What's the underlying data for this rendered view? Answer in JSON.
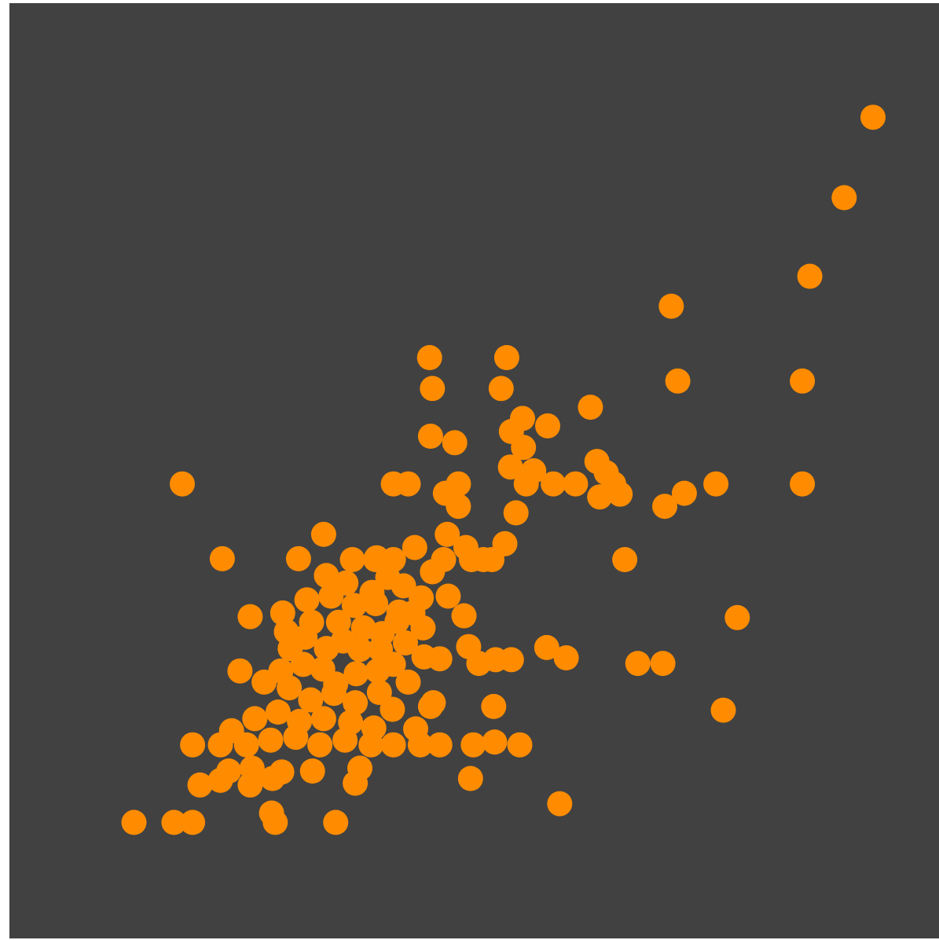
{
  "chart_data": {
    "type": "scatter",
    "title": "",
    "xlabel": "",
    "ylabel": "",
    "xlim": [
      0,
      1
    ],
    "ylim": [
      0,
      1
    ],
    "grid": false,
    "legend": "none",
    "background_color": "#414141",
    "marker_color": "#ff8c00",
    "points": [
      [
        0.134,
        0.124
      ],
      [
        0.177,
        0.124
      ],
      [
        0.197,
        0.124
      ],
      [
        0.286,
        0.124
      ],
      [
        0.351,
        0.124
      ],
      [
        0.592,
        0.144
      ],
      [
        0.282,
        0.134
      ],
      [
        0.205,
        0.164
      ],
      [
        0.227,
        0.169
      ],
      [
        0.259,
        0.164
      ],
      [
        0.283,
        0.171
      ],
      [
        0.236,
        0.179
      ],
      [
        0.261,
        0.182
      ],
      [
        0.293,
        0.178
      ],
      [
        0.326,
        0.179
      ],
      [
        0.372,
        0.166
      ],
      [
        0.377,
        0.182
      ],
      [
        0.496,
        0.171
      ],
      [
        0.197,
        0.207
      ],
      [
        0.227,
        0.207
      ],
      [
        0.255,
        0.207
      ],
      [
        0.281,
        0.212
      ],
      [
        0.308,
        0.215
      ],
      [
        0.334,
        0.207
      ],
      [
        0.361,
        0.212
      ],
      [
        0.389,
        0.207
      ],
      [
        0.413,
        0.207
      ],
      [
        0.442,
        0.207
      ],
      [
        0.463,
        0.207
      ],
      [
        0.437,
        0.224
      ],
      [
        0.499,
        0.207
      ],
      [
        0.522,
        0.21
      ],
      [
        0.549,
        0.207
      ],
      [
        0.239,
        0.222
      ],
      [
        0.264,
        0.235
      ],
      [
        0.289,
        0.242
      ],
      [
        0.312,
        0.232
      ],
      [
        0.338,
        0.235
      ],
      [
        0.367,
        0.231
      ],
      [
        0.392,
        0.225
      ],
      [
        0.301,
        0.268
      ],
      [
        0.324,
        0.255
      ],
      [
        0.349,
        0.262
      ],
      [
        0.372,
        0.252
      ],
      [
        0.398,
        0.263
      ],
      [
        0.412,
        0.245
      ],
      [
        0.453,
        0.248
      ],
      [
        0.521,
        0.248
      ],
      [
        0.768,
        0.244
      ],
      [
        0.248,
        0.286
      ],
      [
        0.274,
        0.274
      ],
      [
        0.292,
        0.286
      ],
      [
        0.316,
        0.293
      ],
      [
        0.337,
        0.288
      ],
      [
        0.351,
        0.272
      ],
      [
        0.373,
        0.283
      ],
      [
        0.396,
        0.286
      ],
      [
        0.413,
        0.293
      ],
      [
        0.429,
        0.274
      ],
      [
        0.456,
        0.252
      ],
      [
        0.302,
        0.31
      ],
      [
        0.318,
        0.322
      ],
      [
        0.341,
        0.31
      ],
      [
        0.359,
        0.318
      ],
      [
        0.377,
        0.309
      ],
      [
        0.399,
        0.309
      ],
      [
        0.426,
        0.316
      ],
      [
        0.446,
        0.301
      ],
      [
        0.463,
        0.299
      ],
      [
        0.523,
        0.298
      ],
      [
        0.54,
        0.298
      ],
      [
        0.578,
        0.311
      ],
      [
        0.599,
        0.3
      ],
      [
        0.676,
        0.294
      ],
      [
        0.703,
        0.294
      ],
      [
        0.325,
        0.338
      ],
      [
        0.354,
        0.338
      ],
      [
        0.381,
        0.332
      ],
      [
        0.401,
        0.326
      ],
      [
        0.417,
        0.339
      ],
      [
        0.445,
        0.332
      ],
      [
        0.494,
        0.312
      ],
      [
        0.505,
        0.294
      ],
      [
        0.259,
        0.344
      ],
      [
        0.294,
        0.348
      ],
      [
        0.32,
        0.362
      ],
      [
        0.346,
        0.366
      ],
      [
        0.371,
        0.356
      ],
      [
        0.394,
        0.358
      ],
      [
        0.419,
        0.349
      ],
      [
        0.434,
        0.348
      ],
      [
        0.472,
        0.366
      ],
      [
        0.489,
        0.345
      ],
      [
        0.298,
        0.328
      ],
      [
        0.783,
        0.343
      ],
      [
        0.341,
        0.388
      ],
      [
        0.362,
        0.38
      ],
      [
        0.39,
        0.37
      ],
      [
        0.407,
        0.386
      ],
      [
        0.424,
        0.377
      ],
      [
        0.443,
        0.364
      ],
      [
        0.455,
        0.392
      ],
      [
        0.467,
        0.405
      ],
      [
        0.497,
        0.405
      ],
      [
        0.519,
        0.405
      ],
      [
        0.662,
        0.405
      ],
      [
        0.229,
        0.406
      ],
      [
        0.311,
        0.406
      ],
      [
        0.369,
        0.405
      ],
      [
        0.394,
        0.405
      ],
      [
        0.413,
        0.405
      ],
      [
        0.436,
        0.418
      ],
      [
        0.491,
        0.418
      ],
      [
        0.51,
        0.405
      ],
      [
        0.338,
        0.432
      ],
      [
        0.395,
        0.407
      ],
      [
        0.471,
        0.432
      ],
      [
        0.533,
        0.422
      ],
      [
        0.545,
        0.455
      ],
      [
        0.469,
        0.476
      ],
      [
        0.483,
        0.462
      ],
      [
        0.483,
        0.486
      ],
      [
        0.556,
        0.486
      ],
      [
        0.564,
        0.5
      ],
      [
        0.585,
        0.486
      ],
      [
        0.609,
        0.486
      ],
      [
        0.635,
        0.472
      ],
      [
        0.642,
        0.498
      ],
      [
        0.65,
        0.486
      ],
      [
        0.657,
        0.475
      ],
      [
        0.705,
        0.462
      ],
      [
        0.726,
        0.476
      ],
      [
        0.76,
        0.486
      ],
      [
        0.853,
        0.486
      ],
      [
        0.413,
        0.486
      ],
      [
        0.429,
        0.486
      ],
      [
        0.186,
        0.486
      ],
      [
        0.539,
        0.504
      ],
      [
        0.453,
        0.537
      ],
      [
        0.479,
        0.53
      ],
      [
        0.54,
        0.542
      ],
      [
        0.553,
        0.525
      ],
      [
        0.632,
        0.51
      ],
      [
        0.579,
        0.548
      ],
      [
        0.455,
        0.588
      ],
      [
        0.552,
        0.556
      ],
      [
        0.452,
        0.621
      ],
      [
        0.529,
        0.588
      ],
      [
        0.625,
        0.568
      ],
      [
        0.719,
        0.596
      ],
      [
        0.853,
        0.596
      ],
      [
        0.535,
        0.621
      ],
      [
        0.861,
        0.708
      ],
      [
        0.712,
        0.676
      ],
      [
        0.898,
        0.792
      ],
      [
        0.929,
        0.878
      ]
    ]
  }
}
